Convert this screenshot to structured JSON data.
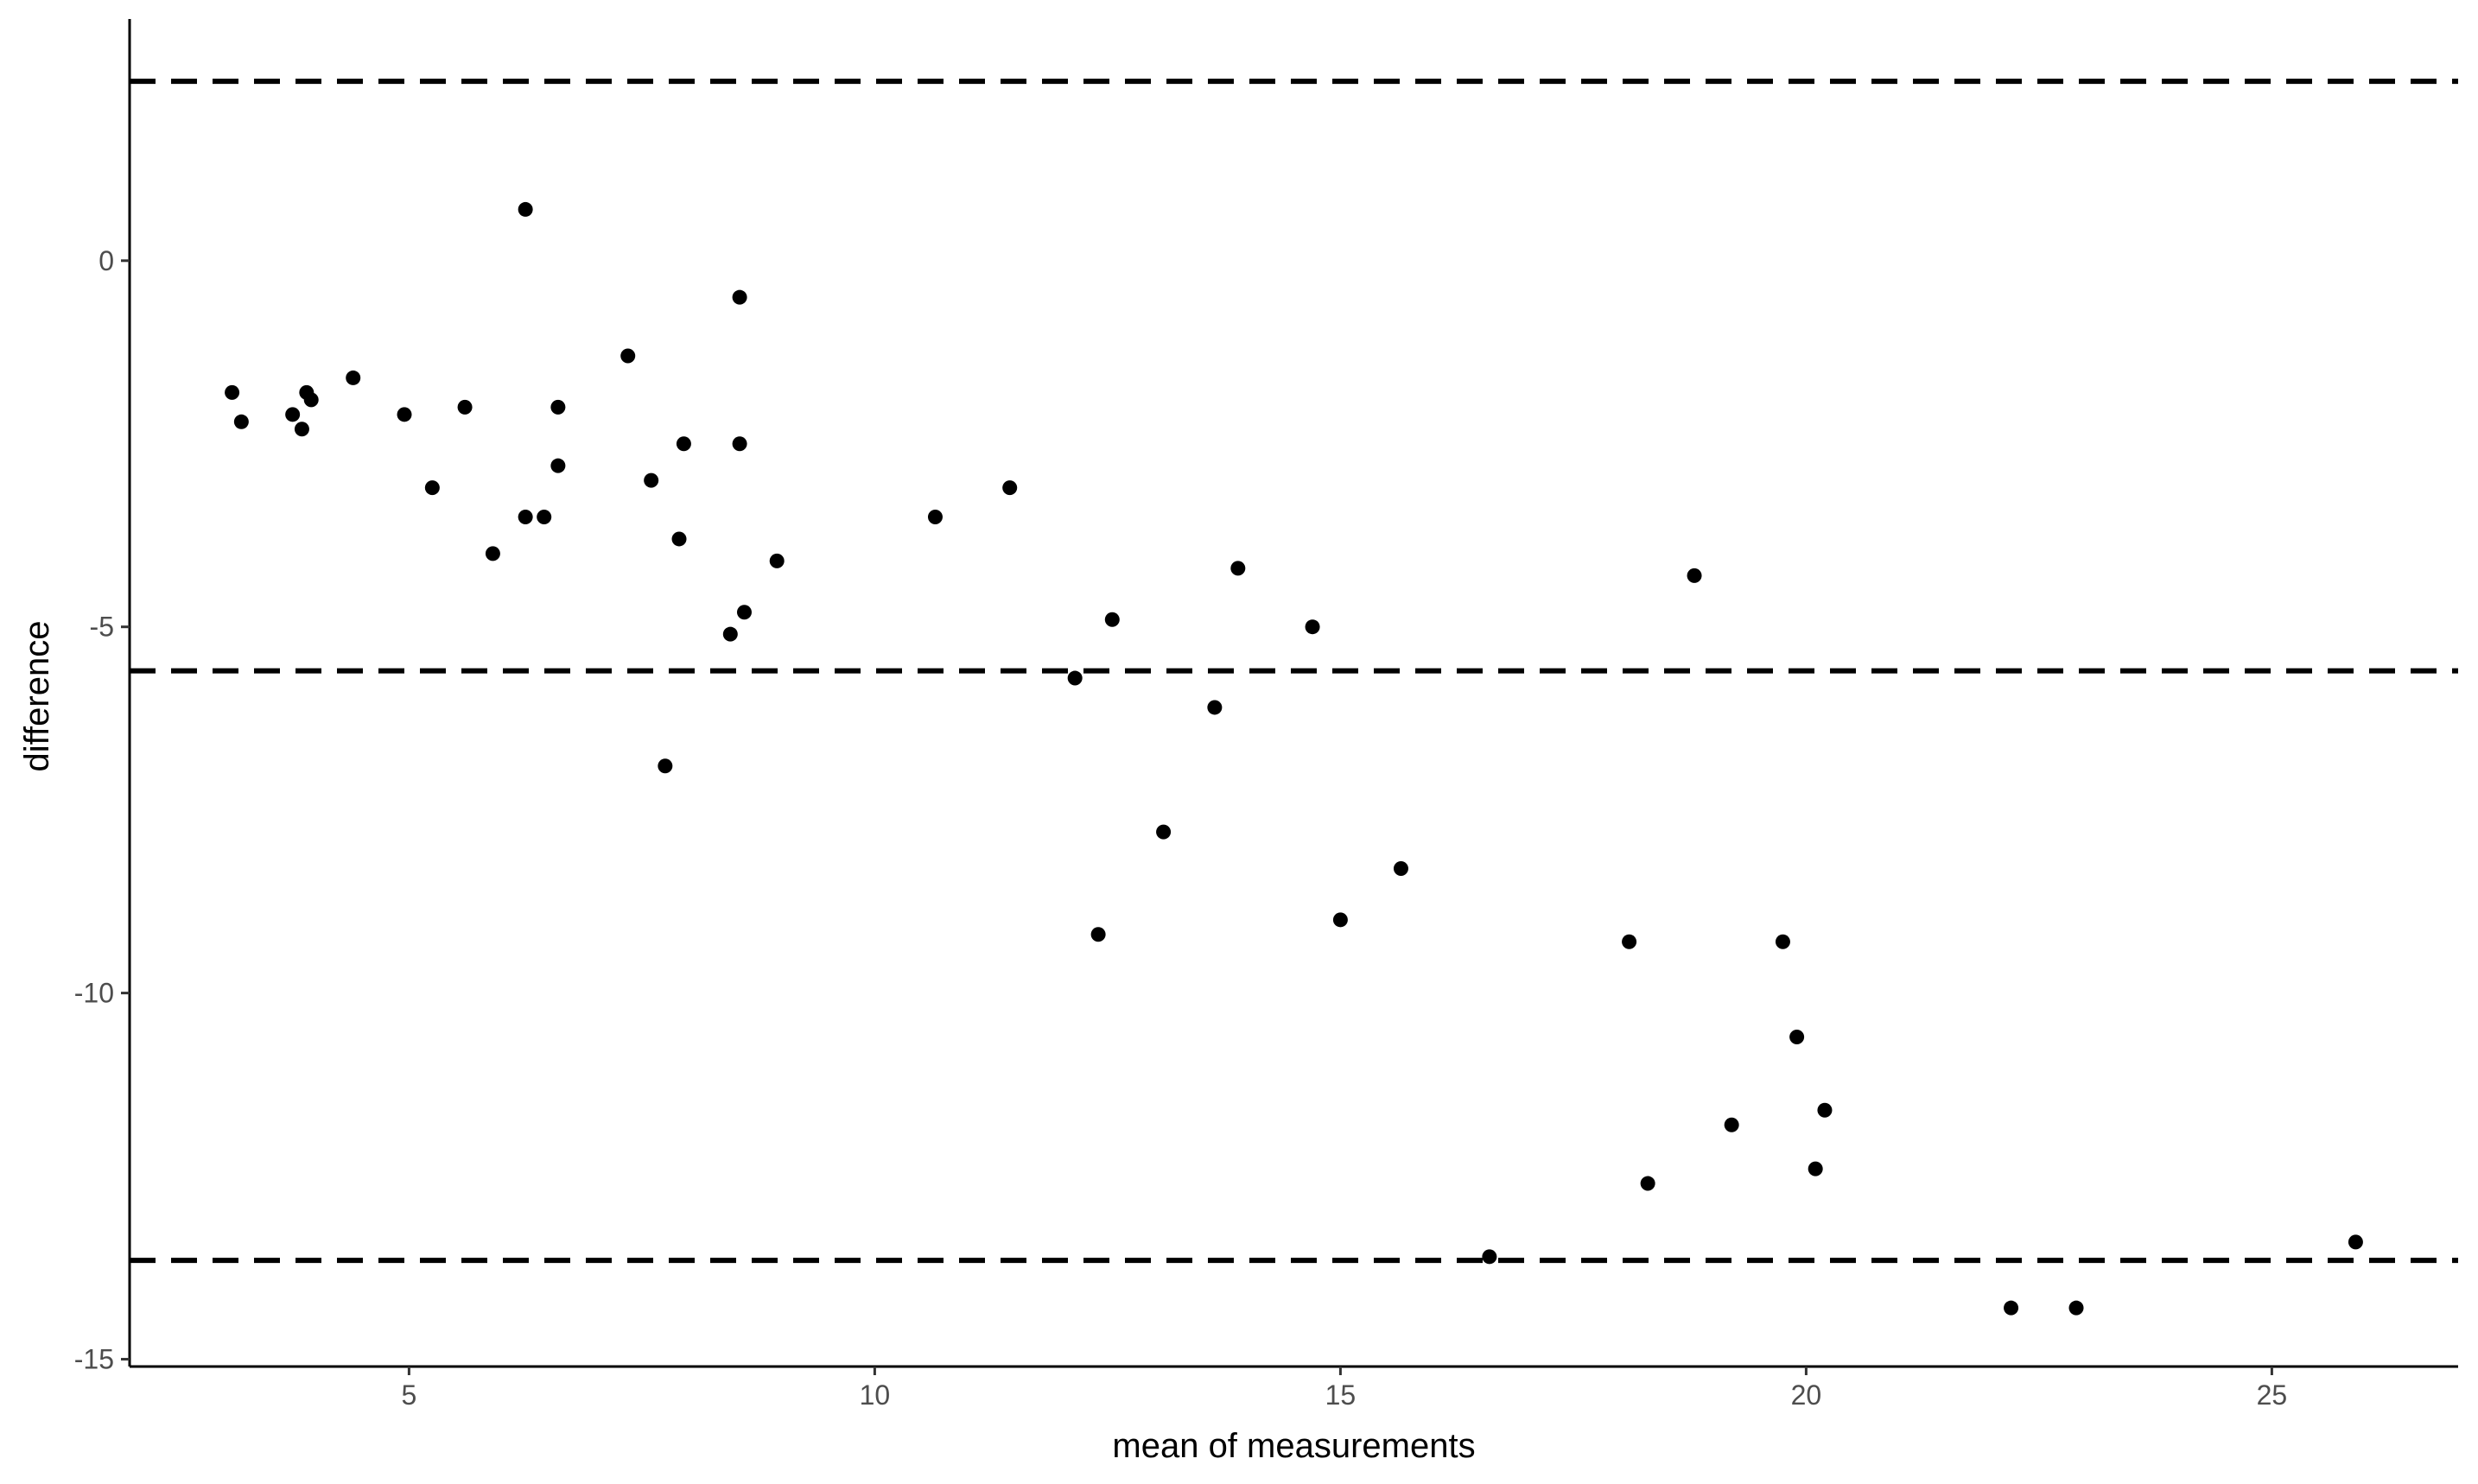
{
  "chart_data": {
    "type": "scatter",
    "title": "",
    "xlabel": "mean of measurements",
    "ylabel": "difference",
    "xlim": [
      2,
      27
    ],
    "ylim": [
      -15.1,
      3.3
    ],
    "xticks": [
      5,
      10,
      15,
      20,
      25
    ],
    "yticks": [
      0,
      -5,
      -10,
      -15
    ],
    "grid": false,
    "legend": "none",
    "reference_lines": [
      {
        "y": 2.45,
        "style": "dashed"
      },
      {
        "y": -5.6,
        "style": "dashed"
      },
      {
        "y": -13.65,
        "style": "dashed"
      }
    ],
    "points": [
      {
        "x": 3.1,
        "y": -1.8
      },
      {
        "x": 3.2,
        "y": -2.2
      },
      {
        "x": 3.75,
        "y": -2.1
      },
      {
        "x": 3.85,
        "y": -2.3
      },
      {
        "x": 3.9,
        "y": -1.8
      },
      {
        "x": 3.95,
        "y": -1.9
      },
      {
        "x": 4.4,
        "y": -1.6
      },
      {
        "x": 4.95,
        "y": -2.1
      },
      {
        "x": 5.25,
        "y": -3.1
      },
      {
        "x": 5.6,
        "y": -2.0
      },
      {
        "x": 5.9,
        "y": -4.0
      },
      {
        "x": 6.25,
        "y": 0.7
      },
      {
        "x": 6.25,
        "y": -3.5
      },
      {
        "x": 6.45,
        "y": -3.5
      },
      {
        "x": 6.6,
        "y": -2.0
      },
      {
        "x": 6.6,
        "y": -2.8
      },
      {
        "x": 7.35,
        "y": -1.3
      },
      {
        "x": 7.6,
        "y": -3.0
      },
      {
        "x": 7.75,
        "y": -6.9
      },
      {
        "x": 7.9,
        "y": -3.8
      },
      {
        "x": 7.95,
        "y": -2.5
      },
      {
        "x": 8.45,
        "y": -5.1
      },
      {
        "x": 8.55,
        "y": -0.5
      },
      {
        "x": 8.55,
        "y": -2.5
      },
      {
        "x": 8.6,
        "y": -4.8
      },
      {
        "x": 8.95,
        "y": -4.1
      },
      {
        "x": 10.65,
        "y": -3.5
      },
      {
        "x": 11.45,
        "y": -3.1
      },
      {
        "x": 12.15,
        "y": -5.7
      },
      {
        "x": 12.4,
        "y": -9.2
      },
      {
        "x": 12.55,
        "y": -4.9
      },
      {
        "x": 13.1,
        "y": -7.8
      },
      {
        "x": 13.65,
        "y": -6.1
      },
      {
        "x": 13.9,
        "y": -4.2
      },
      {
        "x": 14.7,
        "y": -5.0
      },
      {
        "x": 15.0,
        "y": -9.0
      },
      {
        "x": 15.65,
        "y": -8.3
      },
      {
        "x": 16.6,
        "y": -13.6
      },
      {
        "x": 18.1,
        "y": -9.3
      },
      {
        "x": 18.3,
        "y": -12.6
      },
      {
        "x": 18.8,
        "y": -4.3
      },
      {
        "x": 19.2,
        "y": -11.8
      },
      {
        "x": 19.75,
        "y": -9.3
      },
      {
        "x": 19.9,
        "y": -10.6
      },
      {
        "x": 20.1,
        "y": -12.4
      },
      {
        "x": 20.2,
        "y": -11.6
      },
      {
        "x": 22.2,
        "y": -14.3
      },
      {
        "x": 22.9,
        "y": -14.3
      },
      {
        "x": 25.9,
        "y": -13.4
      }
    ]
  }
}
